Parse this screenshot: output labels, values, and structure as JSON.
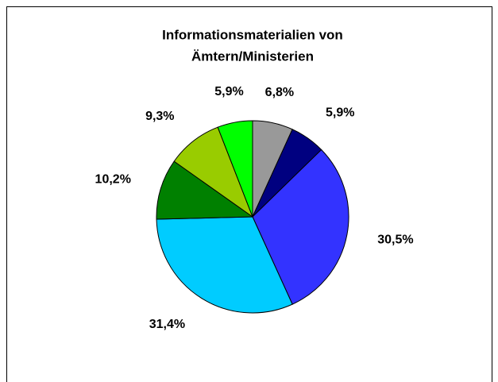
{
  "chart_data": {
    "type": "pie",
    "title": [
      "Informationsmaterialien von",
      "Ämtern/Ministerien"
    ],
    "values": [
      6.8,
      5.9,
      30.5,
      31.4,
      10.2,
      9.3,
      5.9
    ],
    "value_labels": [
      "6,8%",
      "5,9%",
      "30,5%",
      "31,4%",
      "10,2%",
      "9,3%",
      "5,9%"
    ],
    "colors": [
      "#999999",
      "#000080",
      "#3333ff",
      "#00ccff",
      "#008000",
      "#99cc00",
      "#00ff00"
    ]
  }
}
